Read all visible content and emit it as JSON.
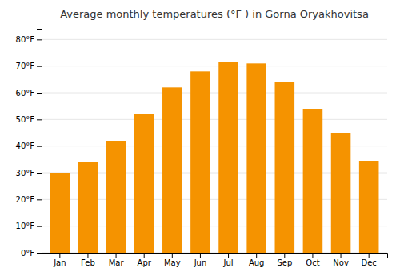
{
  "chart_data": {
    "type": "bar",
    "title": "Average monthly temperatures (°F ) in Gorna Oryakhovitsa",
    "categories": [
      "Jan",
      "Feb",
      "Mar",
      "Apr",
      "May",
      "Jun",
      "Jul",
      "Aug",
      "Sep",
      "Oct",
      "Nov",
      "Dec"
    ],
    "values": [
      30,
      34,
      42,
      52,
      62,
      68,
      71.5,
      71,
      64,
      54,
      45,
      34.5
    ],
    "color": "#F59300",
    "ylim": [
      0,
      84
    ],
    "yticks": [
      {
        "value": 0,
        "label": "0°F"
      },
      {
        "value": 10,
        "label": "10°F"
      },
      {
        "value": 20,
        "label": "20°F"
      },
      {
        "value": 30,
        "label": "30°F"
      },
      {
        "value": 40,
        "label": "40°F"
      },
      {
        "value": 50,
        "label": "50°F"
      },
      {
        "value": 60,
        "label": "60°F"
      },
      {
        "value": 70,
        "label": "70°F"
      },
      {
        "value": 80,
        "label": "80°F"
      }
    ],
    "grid": true
  }
}
